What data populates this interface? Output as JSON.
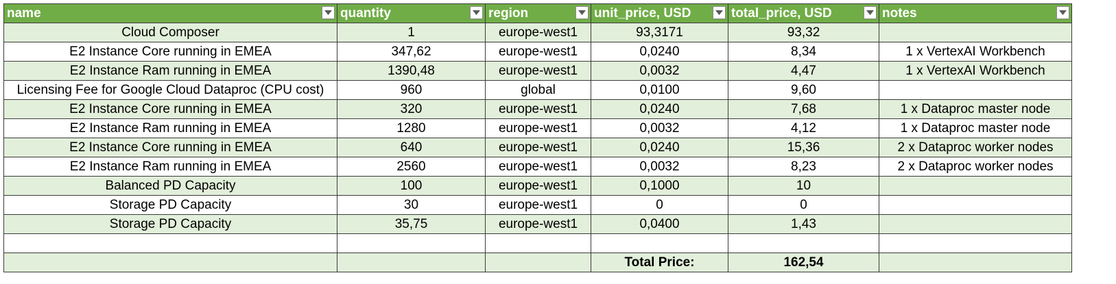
{
  "columns": [
    {
      "key": "name",
      "label": "name"
    },
    {
      "key": "quantity",
      "label": "quantity"
    },
    {
      "key": "region",
      "label": "region"
    },
    {
      "key": "unit_price",
      "label": "unit_price, USD"
    },
    {
      "key": "total_price",
      "label": "total_price, USD"
    },
    {
      "key": "notes",
      "label": "notes"
    }
  ],
  "rows": [
    {
      "name": "Cloud Composer",
      "quantity": "1",
      "region": "europe-west1",
      "unit_price": "93,3171",
      "total_price": "93,32",
      "notes": ""
    },
    {
      "name": "E2 Instance Core running in EMEA",
      "quantity": "347,62",
      "region": "europe-west1",
      "unit_price": "0,0240",
      "total_price": "8,34",
      "notes": "1 x VertexAI Workbench"
    },
    {
      "name": "E2 Instance Ram running in EMEA",
      "quantity": "1390,48",
      "region": "europe-west1",
      "unit_price": "0,0032",
      "total_price": "4,47",
      "notes": "1 x VertexAI Workbench"
    },
    {
      "name": "Licensing Fee for Google Cloud Dataproc (CPU cost)",
      "quantity": "960",
      "region": "global",
      "unit_price": "0,0100",
      "total_price": "9,60",
      "notes": ""
    },
    {
      "name": "E2 Instance Core running in EMEA",
      "quantity": "320",
      "region": "europe-west1",
      "unit_price": "0,0240",
      "total_price": "7,68",
      "notes": "1 x Dataproc master node"
    },
    {
      "name": "E2 Instance Ram running in EMEA",
      "quantity": "1280",
      "region": "europe-west1",
      "unit_price": "0,0032",
      "total_price": "4,12",
      "notes": "1 x Dataproc master node"
    },
    {
      "name": "E2 Instance Core running in EMEA",
      "quantity": "640",
      "region": "europe-west1",
      "unit_price": "0,0240",
      "total_price": "15,36",
      "notes": "2 x Dataproc worker nodes"
    },
    {
      "name": "E2 Instance Ram running in EMEA",
      "quantity": "2560",
      "region": "europe-west1",
      "unit_price": "0,0032",
      "total_price": "8,23",
      "notes": "2 x Dataproc worker nodes"
    },
    {
      "name": "Balanced PD Capacity",
      "quantity": "100",
      "region": "europe-west1",
      "unit_price": "0,1000",
      "total_price": "10",
      "notes": ""
    },
    {
      "name": "Storage PD Capacity",
      "quantity": "30",
      "region": "europe-west1",
      "unit_price": "0",
      "total_price": "0",
      "notes": ""
    },
    {
      "name": "Storage PD Capacity",
      "quantity": "35,75",
      "region": "europe-west1",
      "unit_price": "0,0400",
      "total_price": "1,43",
      "notes": ""
    },
    {
      "name": "",
      "quantity": "",
      "region": "",
      "unit_price": "",
      "total_price": "",
      "notes": ""
    }
  ],
  "total": {
    "label": "Total Price:",
    "value": "162,54"
  },
  "colors": {
    "header_bg": "#70ad47",
    "band_bg": "#e2efda",
    "header_text": "#ffffff"
  },
  "icons": {
    "filter": "dropdown-filter-icon"
  }
}
